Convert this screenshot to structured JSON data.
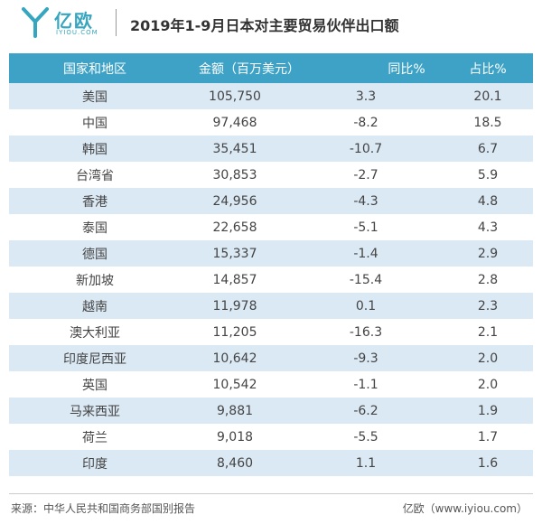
{
  "header": {
    "logo_name": "亿欧",
    "logo_domain": "IYIOU.COM",
    "title": "2019年1-9月日本对主要贸易伙伴出口额",
    "accent_color": "#3da2c5"
  },
  "chart_data": {
    "type": "table",
    "title": "2019年1-9月日本对主要贸易伙伴出口额",
    "columns": [
      "国家和地区",
      "金额（百万美元）",
      "同比%",
      "占比%"
    ],
    "rows": [
      [
        "美国",
        "105,750",
        "3.3",
        "20.1"
      ],
      [
        "中国",
        "97,468",
        "-8.2",
        "18.5"
      ],
      [
        "韩国",
        "35,451",
        "-10.7",
        "6.7"
      ],
      [
        "台湾省",
        "30,853",
        "-2.7",
        "5.9"
      ],
      [
        "香港",
        "24,956",
        "-4.3",
        "4.8"
      ],
      [
        "泰国",
        "22,658",
        "-5.1",
        "4.3"
      ],
      [
        "德国",
        "15,337",
        "-1.4",
        "2.9"
      ],
      [
        "新加坡",
        "14,857",
        "-15.4",
        "2.8"
      ],
      [
        "越南",
        "11,978",
        "0.1",
        "2.3"
      ],
      [
        "澳大利亚",
        "11,205",
        "-16.3",
        "2.1"
      ],
      [
        "印度尼西亚",
        "10,642",
        "-9.3",
        "2.0"
      ],
      [
        "英国",
        "10,542",
        "-1.1",
        "2.0"
      ],
      [
        "马来西亚",
        "9,881",
        "-6.2",
        "1.9"
      ],
      [
        "荷兰",
        "9,018",
        "-5.5",
        "1.7"
      ],
      [
        "印度",
        "8,460",
        "1.1",
        "1.6"
      ]
    ]
  },
  "footer": {
    "source": "来源：中华人民共和国商务部国别报告",
    "credit": "亿欧（www.iyiou.com）"
  }
}
